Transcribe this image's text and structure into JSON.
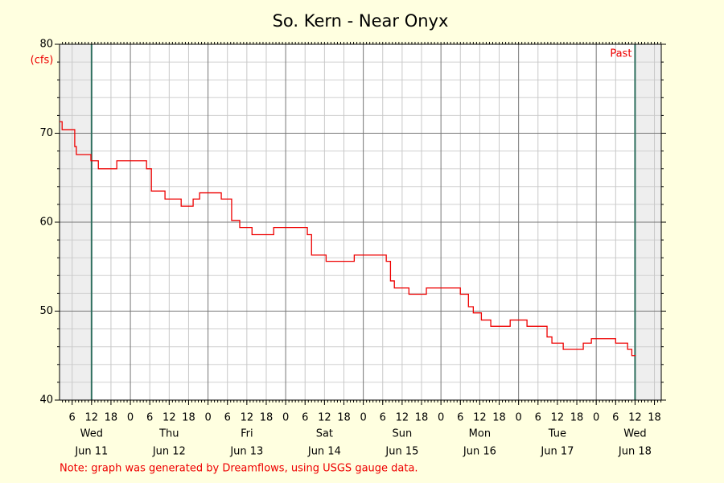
{
  "chart_data": {
    "type": "line",
    "title": "So. Kern - Near Onyx",
    "y_unit": "(cfs)",
    "past_label": "Past",
    "note": "Note: graph was generated by Dreamflows, using USGS gauge data.",
    "xlim": [
      2.1,
      188.1
    ],
    "ylim": [
      40,
      80
    ],
    "yticks": [
      40,
      50,
      60,
      70,
      80
    ],
    "xticks": [
      6,
      12,
      18,
      {
        "value": 24,
        "label": "0"
      },
      {
        "value": 30,
        "label": "6"
      },
      {
        "value": 36,
        "label": "12"
      },
      {
        "value": 42,
        "label": "18"
      },
      {
        "value": 48,
        "label": "0"
      },
      {
        "value": 54,
        "label": "6"
      },
      {
        "value": 60,
        "label": "12"
      },
      {
        "value": 66,
        "label": "18"
      },
      {
        "value": 72,
        "label": "0"
      },
      {
        "value": 78,
        "label": "6"
      },
      {
        "value": 84,
        "label": "12"
      },
      {
        "value": 90,
        "label": "18"
      },
      {
        "value": 96,
        "label": "0"
      },
      {
        "value": 102,
        "label": "6"
      },
      {
        "value": 108,
        "label": "12"
      },
      {
        "value": 114,
        "label": "18"
      },
      {
        "value": 120,
        "label": "0"
      },
      {
        "value": 126,
        "label": "6"
      },
      {
        "value": 132,
        "label": "12"
      },
      {
        "value": 138,
        "label": "18"
      },
      {
        "value": 144,
        "label": "0"
      },
      {
        "value": 150,
        "label": "6"
      },
      {
        "value": 156,
        "label": "12"
      },
      {
        "value": 162,
        "label": "18"
      },
      {
        "value": 168,
        "label": "0"
      },
      {
        "value": 174,
        "label": "6"
      },
      {
        "value": 180,
        "label": "12"
      },
      {
        "value": 186,
        "label": "18"
      }
    ],
    "days": [
      {
        "weekday": "Wed",
        "date": "Jun 11"
      },
      {
        "weekday": "Thu",
        "date": "Jun 12"
      },
      {
        "weekday": "Fri",
        "date": "Jun 13"
      },
      {
        "weekday": "Sat",
        "date": "Jun 14"
      },
      {
        "weekday": "Sun",
        "date": "Jun 15"
      },
      {
        "weekday": "Mon",
        "date": "Jun 16"
      },
      {
        "weekday": "Tue",
        "date": "Jun 17"
      },
      {
        "weekday": "Wed",
        "date": "Jun 18"
      }
    ],
    "markers": [
      12,
      180
    ],
    "grid": true,
    "series": [
      {
        "name": "flow",
        "color": "#ee0000",
        "x": [
          2.1,
          2.9,
          2.9,
          6.8,
          6.8,
          7.3,
          7.3,
          11.8,
          11.8,
          14.1,
          14.1,
          19.8,
          19.8,
          29.0,
          29.0,
          30.5,
          30.5,
          34.7,
          34.7,
          39.7,
          39.7,
          43.4,
          43.4,
          45.4,
          45.4,
          52.1,
          52.1,
          55.3,
          55.3,
          57.8,
          57.8,
          61.6,
          61.6,
          68.3,
          68.3,
          78.7,
          78.7,
          80.0,
          80.0,
          84.5,
          84.5,
          93.2,
          93.2,
          103.1,
          103.1,
          104.4,
          104.4,
          105.6,
          105.6,
          110.1,
          110.1,
          115.5,
          115.5,
          126.0,
          126.0,
          128.5,
          128.5,
          130.0,
          130.0,
          132.5,
          132.5,
          135.4,
          135.4,
          141.4,
          141.4,
          146.6,
          146.6,
          152.8,
          152.8,
          154.3,
          154.3,
          157.8,
          157.8,
          164.0,
          164.0,
          166.5,
          166.5,
          174.0,
          174.0,
          177.7,
          177.7,
          179.0,
          179.0,
          180.2
        ],
        "values": [
          71.3,
          71.3,
          70.4,
          70.4,
          68.5,
          68.5,
          67.6,
          67.6,
          66.9,
          66.9,
          66.0,
          66.0,
          66.9,
          66.9,
          66.0,
          66.0,
          63.5,
          63.5,
          62.6,
          62.6,
          61.8,
          61.8,
          62.6,
          62.6,
          63.3,
          63.3,
          62.6,
          62.6,
          60.2,
          60.2,
          59.4,
          59.4,
          58.6,
          58.6,
          59.4,
          59.4,
          58.6,
          58.6,
          56.3,
          56.3,
          55.6,
          55.6,
          56.3,
          56.3,
          55.6,
          55.6,
          53.4,
          53.4,
          52.6,
          52.6,
          51.9,
          51.9,
          52.6,
          52.6,
          51.9,
          51.9,
          50.5,
          50.5,
          49.8,
          49.8,
          49.0,
          49.0,
          48.3,
          48.3,
          49.0,
          49.0,
          48.3,
          48.3,
          47.1,
          47.1,
          46.4,
          46.4,
          45.7,
          45.7,
          46.4,
          46.4,
          46.9,
          46.9,
          46.4,
          46.4,
          45.7,
          45.7,
          45.0,
          45.0
        ]
      }
    ]
  }
}
